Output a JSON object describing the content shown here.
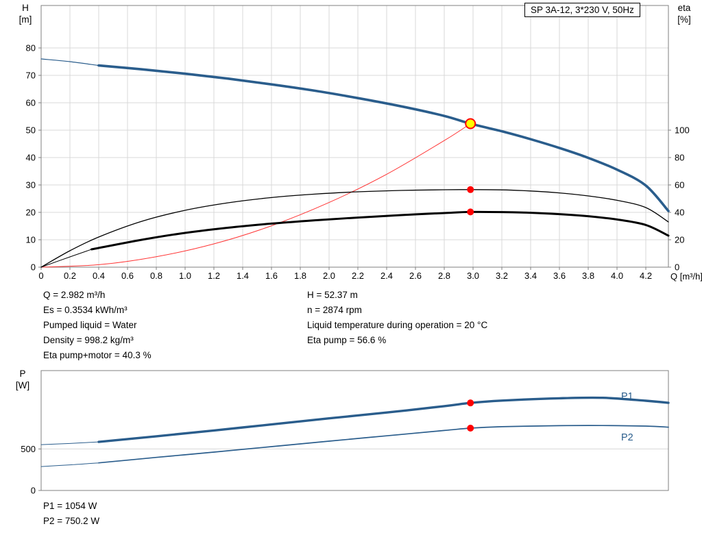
{
  "window": {
    "title_box": "SP 3A-12, 3*230 V, 50Hz"
  },
  "colors": {
    "curve_blue": "#2a5d8c",
    "curve_black": "#000000",
    "curve_red": "#ff3333",
    "dot_red": "#ff0000",
    "duty_yellow": "#ffff00",
    "grid": "#d8d8d8",
    "frame": "#7f7f7f",
    "text": "#000000"
  },
  "axes": {
    "h": "H",
    "h_unit": "[m]",
    "eta": "eta",
    "eta_unit": "[%]",
    "p": "P",
    "p_unit": "[W]",
    "q_title": "Q [m³/h]"
  },
  "info": {
    "left": [
      "Q = 2.982 m³/h",
      "Es = 0.3534 kWh/m³",
      "Pumped liquid = Water",
      "Density = 998.2 kg/m³",
      "Eta pump+motor = 40.3 %"
    ],
    "right": [
      "H = 52.37 m",
      "n = 2874 rpm",
      "Liquid temperature during operation = 20 °C",
      "Eta pump = 56.6 %"
    ],
    "power": [
      "P1 = 1054 W",
      "P2 = 750.2 W"
    ]
  },
  "chart_data": [
    {
      "type": "line",
      "id": "hq-eta",
      "title": "SP 3A-12, 3*230 V, 50Hz",
      "xlabel": "Q [m³/h]",
      "ylabel": "H [m]",
      "y2label": "eta [%]",
      "xlim": [
        0,
        4.357
      ],
      "ylim": [
        0,
        95.5
      ],
      "y2lim": [
        0,
        191
      ],
      "grid": true,
      "x_ticks": [
        0,
        0.2,
        0.4,
        0.6,
        0.8,
        1,
        1.2,
        1.4,
        1.6,
        1.8,
        2,
        2.2,
        2.4,
        2.6,
        2.8,
        3,
        3.2,
        3.4,
        3.6,
        3.8,
        4,
        4.2
      ],
      "y_ticks": [
        0,
        10,
        20,
        30,
        40,
        50,
        60,
        70,
        80
      ],
      "y2_ticks": [
        0,
        20,
        40,
        60,
        80,
        100
      ],
      "series": [
        {
          "name": "hq-lead",
          "axis": "left",
          "color": "#2a5d8c",
          "width": 1.2,
          "x": [
            0,
            0.2,
            0.4
          ],
          "y": [
            76,
            75,
            73.6
          ]
        },
        {
          "name": "hq",
          "axis": "left",
          "color": "#2a5d8c",
          "width": 3.6,
          "x": [
            0.4,
            0.7,
            1.0,
            1.3,
            1.6,
            1.9,
            2.2,
            2.5,
            2.8,
            2.982,
            3.2,
            3.4,
            3.6,
            3.8,
            4.0,
            4.2,
            4.357
          ],
          "y": [
            73.6,
            72.2,
            70.6,
            68.8,
            66.7,
            64.4,
            61.7,
            58.7,
            55.2,
            52.37,
            49.6,
            46.7,
            43.5,
            39.9,
            35.6,
            29.8,
            20.5
          ]
        },
        {
          "name": "system-curve",
          "axis": "left",
          "color": "#ff3333",
          "width": 1,
          "x": [
            0,
            0.4,
            0.8,
            1.2,
            1.6,
            2.0,
            2.4,
            2.8,
            2.982
          ],
          "y": [
            0,
            0.9,
            3.8,
            8.5,
            15.1,
            23.6,
            33.9,
            46.2,
            52.37
          ]
        },
        {
          "name": "eta-pump",
          "axis": "right",
          "color": "#000000",
          "width": 1.3,
          "x": [
            0,
            0.2,
            0.4,
            0.7,
            1.0,
            1.3,
            1.6,
            1.9,
            2.2,
            2.5,
            2.8,
            2.982,
            3.2,
            3.4,
            3.6,
            3.8,
            4.0,
            4.2,
            4.357
          ],
          "y": [
            0,
            12,
            22,
            33.5,
            41.5,
            47,
            50.8,
            53.3,
            55,
            56,
            56.5,
            56.6,
            56.4,
            55.6,
            54.2,
            52,
            48.8,
            43.5,
            33
          ]
        },
        {
          "name": "eta-pump-motor-lead",
          "axis": "right",
          "color": "#000000",
          "width": 1,
          "x": [
            0,
            0.2,
            0.35
          ],
          "y": [
            0,
            7.5,
            13
          ]
        },
        {
          "name": "eta-pump-motor",
          "axis": "right",
          "color": "#000000",
          "width": 3,
          "x": [
            0.35,
            0.7,
            1.0,
            1.3,
            1.6,
            1.9,
            2.2,
            2.5,
            2.8,
            2.982,
            3.2,
            3.4,
            3.6,
            3.8,
            4.0,
            4.2,
            4.357
          ],
          "y": [
            13,
            20,
            25,
            28.8,
            31.8,
            34.2,
            36.2,
            38,
            39.5,
            40.3,
            40.2,
            39.7,
            38.7,
            37.2,
            34.8,
            30.8,
            23
          ]
        }
      ],
      "markers": [
        {
          "name": "eta-pump-duty-dot",
          "x": 2.982,
          "y": 56.6,
          "axis": "right",
          "fill": "#ff0000",
          "r": 5
        },
        {
          "name": "eta-pump-motor-duty-dot",
          "x": 2.982,
          "y": 40.3,
          "axis": "right",
          "fill": "#ff0000",
          "r": 5
        },
        {
          "name": "duty-point-marker",
          "x": 2.982,
          "y": 52.37,
          "axis": "left",
          "fill": "#ffff00",
          "stroke": "#ff0000",
          "r": 7
        }
      ]
    },
    {
      "type": "line",
      "id": "power",
      "ylabel": "P [W]",
      "xlim": [
        0,
        4.357
      ],
      "ylim": [
        0,
        1443
      ],
      "grid": false,
      "x_ticks": [],
      "y_ticks": [
        0,
        500
      ],
      "series": [
        {
          "name": "p1-lead",
          "axis": "left",
          "color": "#2a5d8c",
          "width": 1,
          "x": [
            0,
            0.2,
            0.4
          ],
          "y": [
            552,
            566,
            585
          ]
        },
        {
          "name": "p1",
          "axis": "left",
          "color": "#2a5d8c",
          "width": 3.4,
          "x": [
            0.4,
            0.8,
            1.2,
            1.6,
            2.0,
            2.4,
            2.8,
            2.982,
            3.2,
            3.6,
            3.9,
            4.2,
            4.357
          ],
          "y": [
            585,
            652,
            722,
            795,
            868,
            938,
            1015,
            1054,
            1082,
            1110,
            1116,
            1080,
            1055
          ]
        },
        {
          "name": "p2-lead",
          "axis": "left",
          "color": "#2a5d8c",
          "width": 1,
          "x": [
            0,
            0.2,
            0.4
          ],
          "y": [
            288,
            308,
            332
          ]
        },
        {
          "name": "p2",
          "axis": "left",
          "color": "#2a5d8c",
          "width": 1.7,
          "x": [
            0.4,
            0.8,
            1.2,
            1.6,
            2.0,
            2.4,
            2.8,
            2.982,
            3.2,
            3.6,
            3.9,
            4.2,
            4.357
          ],
          "y": [
            332,
            398,
            462,
            528,
            594,
            658,
            722,
            750.2,
            768,
            780,
            782,
            775,
            762
          ]
        }
      ],
      "markers": [
        {
          "name": "p1-duty-dot",
          "x": 2.982,
          "y": 1054,
          "axis": "left",
          "fill": "#ff0000",
          "r": 5
        },
        {
          "name": "p2-duty-dot",
          "x": 2.982,
          "y": 750.2,
          "axis": "left",
          "fill": "#ff0000",
          "r": 5
        }
      ],
      "curve_labels": [
        {
          "text": "P1",
          "color": "#2a5d8c"
        },
        {
          "text": "P2",
          "color": "#2a5d8c"
        }
      ]
    }
  ]
}
